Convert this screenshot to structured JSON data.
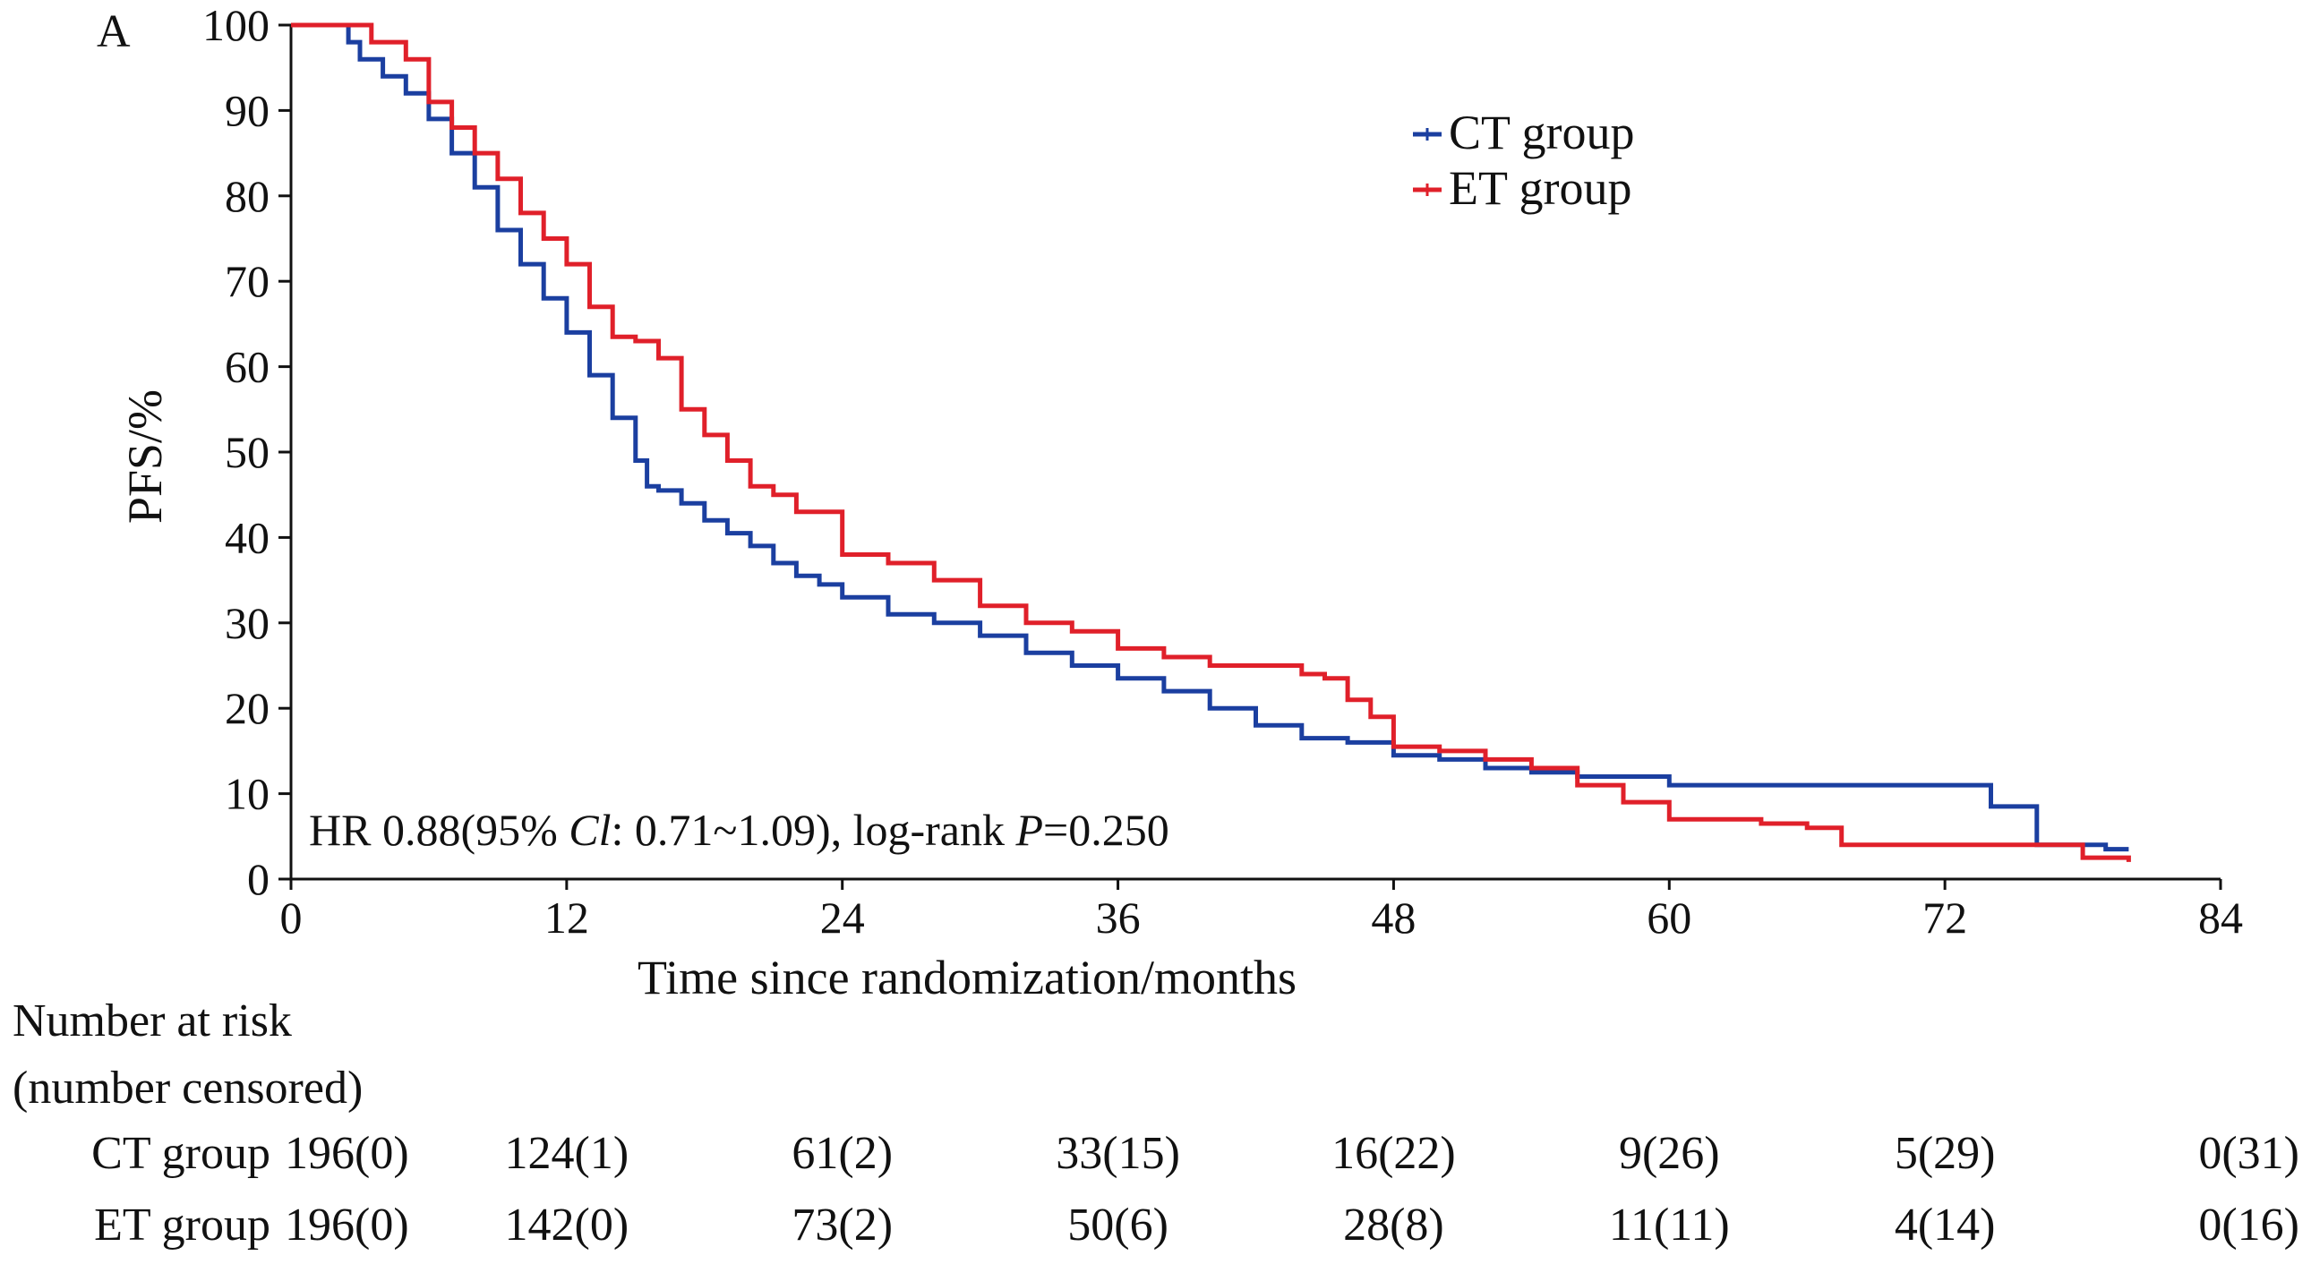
{
  "chart_data": {
    "type": "line",
    "panel_label": "A",
    "xlabel": "Time since randomization/months",
    "ylabel": "PFS/%",
    "xlim": [
      0,
      84
    ],
    "ylim": [
      0,
      100
    ],
    "xticks": [
      0,
      12,
      24,
      36,
      48,
      60,
      72,
      84
    ],
    "yticks": [
      0,
      10,
      20,
      30,
      40,
      50,
      60,
      70,
      80,
      90,
      100
    ],
    "grid": false,
    "legend_position": "top-right",
    "annotation": {
      "hr_text": "HR 0.88(95% ",
      "ci_italic": "Cl",
      "ci_text": ": 0.71~1.09), log-rank ",
      "p_italic": "P",
      "p_text": "=0.250"
    },
    "series": [
      {
        "name": "CT group",
        "color": "#1b3fa0",
        "x": [
          0,
          2,
          2.5,
          3,
          4,
          5,
          6,
          7,
          8,
          9,
          10,
          11,
          12,
          13,
          14,
          15,
          15.5,
          16,
          17,
          18,
          19,
          20,
          21,
          22,
          23,
          24,
          26,
          28,
          30,
          32,
          34,
          36,
          38,
          40,
          42,
          44,
          46,
          48,
          50,
          52,
          54,
          56,
          58,
          60,
          64,
          68,
          70,
          73.5,
          74,
          75.5,
          76,
          78,
          79,
          80
        ],
        "y": [
          100,
          100,
          98,
          96,
          94,
          92,
          89,
          85,
          81,
          76,
          72,
          68,
          64,
          59,
          54,
          49,
          46,
          45.5,
          44,
          42,
          40.5,
          39,
          37,
          35.5,
          34.5,
          33,
          31,
          30,
          28.5,
          26.5,
          25,
          23.5,
          22,
          20,
          18,
          16.5,
          16,
          14.5,
          14,
          13,
          12.5,
          12,
          12,
          11,
          11,
          11,
          11,
          11,
          8.5,
          8.5,
          4,
          4,
          3.5,
          3.5
        ]
      },
      {
        "name": "ET group",
        "color": "#e0202a",
        "x": [
          0,
          2.5,
          3.5,
          5,
          6,
          7,
          8,
          9,
          10,
          11,
          12,
          13,
          14,
          15,
          16,
          17,
          18,
          19,
          20,
          21,
          22,
          23,
          24,
          26,
          28,
          30,
          32,
          34,
          36,
          38,
          40,
          42,
          44,
          45,
          46,
          47,
          48,
          50,
          52,
          54,
          56,
          58,
          60,
          62,
          64,
          66,
          67.5,
          70,
          72,
          74,
          76,
          78,
          80
        ],
        "y": [
          100,
          100,
          98,
          96,
          91,
          88,
          85,
          82,
          78,
          75,
          72,
          67,
          63.5,
          63,
          61,
          55,
          52,
          49,
          46,
          45,
          43,
          43,
          38,
          37,
          35,
          32,
          30,
          29,
          27,
          26,
          25,
          25,
          24,
          23.5,
          21,
          19,
          15.5,
          15,
          14,
          13,
          11,
          9,
          7,
          7,
          6.5,
          6,
          4,
          4,
          4,
          4,
          4,
          2.5,
          2
        ]
      }
    ]
  },
  "risk_table": {
    "title_line1": "Number at risk",
    "title_line2": "(number censored)",
    "rows": [
      {
        "label": "CT group",
        "label_color": "#2f8fe0",
        "values": [
          "196(0)",
          "124(1)",
          "61(2)",
          "33(15)",
          "16(22)",
          "9(26)",
          "5(29)",
          "0(31)"
        ]
      },
      {
        "label": "ET group",
        "label_color": "#e0202a",
        "values": [
          "196(0)",
          "142(0)",
          "73(2)",
          "50(6)",
          "28(8)",
          "11(11)",
          "4(14)",
          "0(16)"
        ]
      }
    ]
  }
}
